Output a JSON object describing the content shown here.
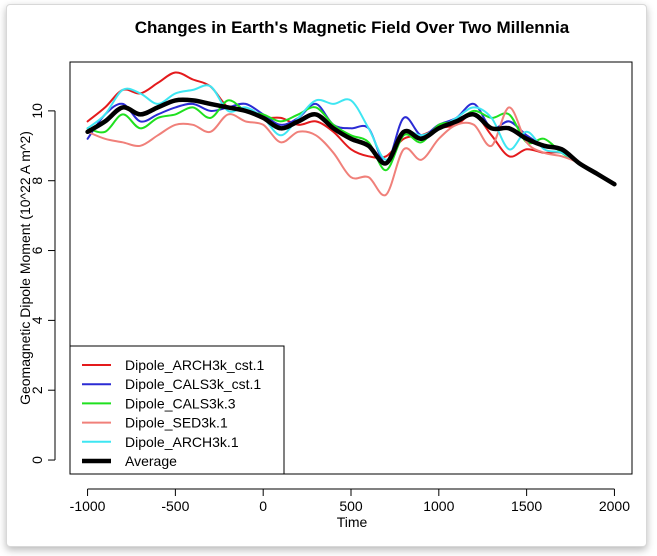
{
  "chart_data": {
    "type": "line",
    "title": "Changes in Earth's Magnetic Field Over Two Millennia",
    "xlabel": "Time",
    "ylabel": "Geomagnetic Dipole Moment (10^22 A m^2)",
    "xlim": [
      -1100,
      2100
    ],
    "ylim": [
      -0.4,
      11.4
    ],
    "xticks": [
      -1000,
      -500,
      0,
      500,
      1000,
      1500,
      2000
    ],
    "yticks": [
      0,
      2,
      4,
      6,
      8,
      10
    ],
    "grid": false,
    "legend_position": "bottom-left",
    "series": [
      {
        "name": "Dipole_ARCH3k_cst.1",
        "color": "#e41a1c",
        "width": 2,
        "x": [
          -1000,
          -900,
          -800,
          -700,
          -600,
          -500,
          -400,
          -300,
          -200,
          -100,
          0,
          100,
          200,
          300,
          400,
          500,
          600,
          700,
          800,
          900,
          1000,
          1100,
          1200,
          1300,
          1400,
          1500,
          1600,
          1700,
          1800,
          1900,
          2000
        ],
        "y": [
          9.7,
          10.1,
          10.6,
          10.5,
          10.8,
          11.1,
          10.9,
          10.7,
          10.1,
          10.0,
          9.8,
          9.8,
          9.6,
          9.7,
          9.4,
          8.9,
          8.7,
          8.7,
          9.2,
          9.3,
          9.5,
          9.6,
          9.9,
          9.3,
          8.7,
          8.9,
          8.8,
          8.8,
          8.5,
          8.2,
          7.9
        ]
      },
      {
        "name": "Dipole_CALS3k_cst.1",
        "color": "#2b2bd4",
        "width": 2,
        "x": [
          -1000,
          -900,
          -800,
          -700,
          -600,
          -500,
          -400,
          -300,
          -200,
          -100,
          0,
          100,
          200,
          300,
          400,
          500,
          600,
          700,
          800,
          900,
          1000,
          1100,
          1200,
          1300,
          1400,
          1500,
          1600,
          1700,
          1800,
          1900,
          2000
        ],
        "y": [
          9.2,
          9.9,
          10.2,
          9.7,
          9.9,
          10.1,
          10.2,
          10.0,
          10.1,
          10.2,
          9.9,
          9.6,
          9.8,
          10.2,
          9.6,
          9.5,
          9.5,
          8.5,
          9.8,
          9.3,
          9.6,
          9.8,
          10.2,
          9.5,
          9.7,
          9.3,
          9.0,
          8.9,
          8.5,
          8.2,
          7.9
        ]
      },
      {
        "name": "Dipole_CALS3k.3",
        "color": "#1fe01f",
        "width": 2,
        "x": [
          -1000,
          -900,
          -800,
          -700,
          -600,
          -500,
          -400,
          -300,
          -200,
          -100,
          0,
          100,
          200,
          300,
          400,
          500,
          600,
          700,
          800,
          900,
          1000,
          1100,
          1200,
          1300,
          1400,
          1500,
          1600,
          1700,
          1800,
          1900,
          2000
        ],
        "y": [
          9.5,
          9.4,
          9.9,
          9.5,
          9.8,
          9.9,
          10.1,
          9.8,
          10.3,
          10.0,
          9.9,
          9.7,
          9.9,
          10.1,
          9.6,
          9.3,
          9.1,
          8.3,
          9.3,
          9.1,
          9.6,
          9.7,
          10.0,
          9.8,
          9.9,
          9.1,
          9.2,
          8.8,
          8.5,
          8.2,
          7.9
        ]
      },
      {
        "name": "Dipole_SED3k.1",
        "color": "#f0807a",
        "width": 2,
        "x": [
          -1000,
          -900,
          -800,
          -700,
          -600,
          -500,
          -400,
          -300,
          -200,
          -100,
          0,
          100,
          200,
          300,
          400,
          500,
          600,
          700,
          800,
          900,
          1000,
          1100,
          1200,
          1300,
          1400,
          1500,
          1600,
          1700,
          1800,
          1900,
          2000
        ],
        "y": [
          9.4,
          9.2,
          9.1,
          9.0,
          9.3,
          9.6,
          9.6,
          9.4,
          9.9,
          9.7,
          9.6,
          9.1,
          9.4,
          9.3,
          8.8,
          8.1,
          8.1,
          7.6,
          8.9,
          8.6,
          9.2,
          9.6,
          9.6,
          9.0,
          10.1,
          9.1,
          8.8,
          8.7,
          8.5,
          8.2,
          7.9
        ]
      },
      {
        "name": "Dipole_ARCH3k.1",
        "color": "#3ee6f2",
        "width": 2,
        "x": [
          -1000,
          -900,
          -800,
          -700,
          -600,
          -500,
          -400,
          -300,
          -200,
          -100,
          0,
          100,
          200,
          300,
          400,
          500,
          600,
          700,
          800,
          900,
          1000,
          1100,
          1200,
          1300,
          1400,
          1500,
          1600,
          1700,
          1800,
          1900,
          2000
        ],
        "y": [
          9.5,
          9.9,
          10.6,
          10.5,
          10.2,
          10.5,
          10.6,
          10.7,
          10.0,
          10.1,
          9.8,
          9.3,
          9.8,
          10.3,
          10.2,
          10.3,
          9.5,
          8.6,
          9.4,
          9.3,
          9.5,
          9.8,
          10.1,
          9.8,
          8.9,
          9.4,
          8.9,
          8.8,
          8.5,
          8.2,
          7.9
        ]
      },
      {
        "name": "Average",
        "color": "#000000",
        "width": 4.5,
        "x": [
          -1000,
          -900,
          -800,
          -700,
          -600,
          -500,
          -400,
          -300,
          -200,
          -100,
          0,
          100,
          200,
          300,
          400,
          500,
          600,
          700,
          800,
          900,
          1000,
          1100,
          1200,
          1300,
          1400,
          1500,
          1600,
          1700,
          1800,
          1900,
          2000
        ],
        "y": [
          9.4,
          9.7,
          10.1,
          9.9,
          10.1,
          10.3,
          10.3,
          10.2,
          10.1,
          10.0,
          9.8,
          9.5,
          9.7,
          9.9,
          9.5,
          9.2,
          9.0,
          8.5,
          9.4,
          9.2,
          9.5,
          9.7,
          9.9,
          9.5,
          9.5,
          9.2,
          9.0,
          8.9,
          8.5,
          8.2,
          7.9
        ]
      }
    ]
  }
}
